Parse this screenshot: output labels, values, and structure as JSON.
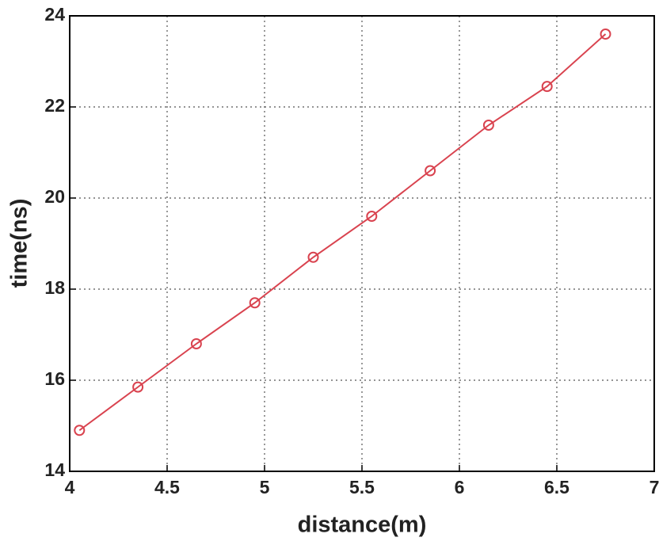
{
  "chart_data": {
    "type": "line",
    "x_label": "distance(m)",
    "y_label": "time(ns)",
    "x": [
      4.05,
      4.35,
      4.65,
      4.95,
      5.25,
      5.55,
      5.85,
      6.15,
      6.45,
      6.75
    ],
    "series": [
      {
        "name": "time",
        "color": "#d9434f",
        "values": [
          14.9,
          15.85,
          16.8,
          17.7,
          18.7,
          19.6,
          20.6,
          21.6,
          22.45,
          23.6
        ]
      }
    ],
    "xlim": [
      4,
      7
    ],
    "xticks": [
      4,
      4.5,
      5,
      5.5,
      6,
      6.5,
      7
    ],
    "ylim": [
      14,
      24
    ],
    "yticks": [
      14,
      16,
      18,
      20,
      22,
      24
    ],
    "grid": true
  }
}
